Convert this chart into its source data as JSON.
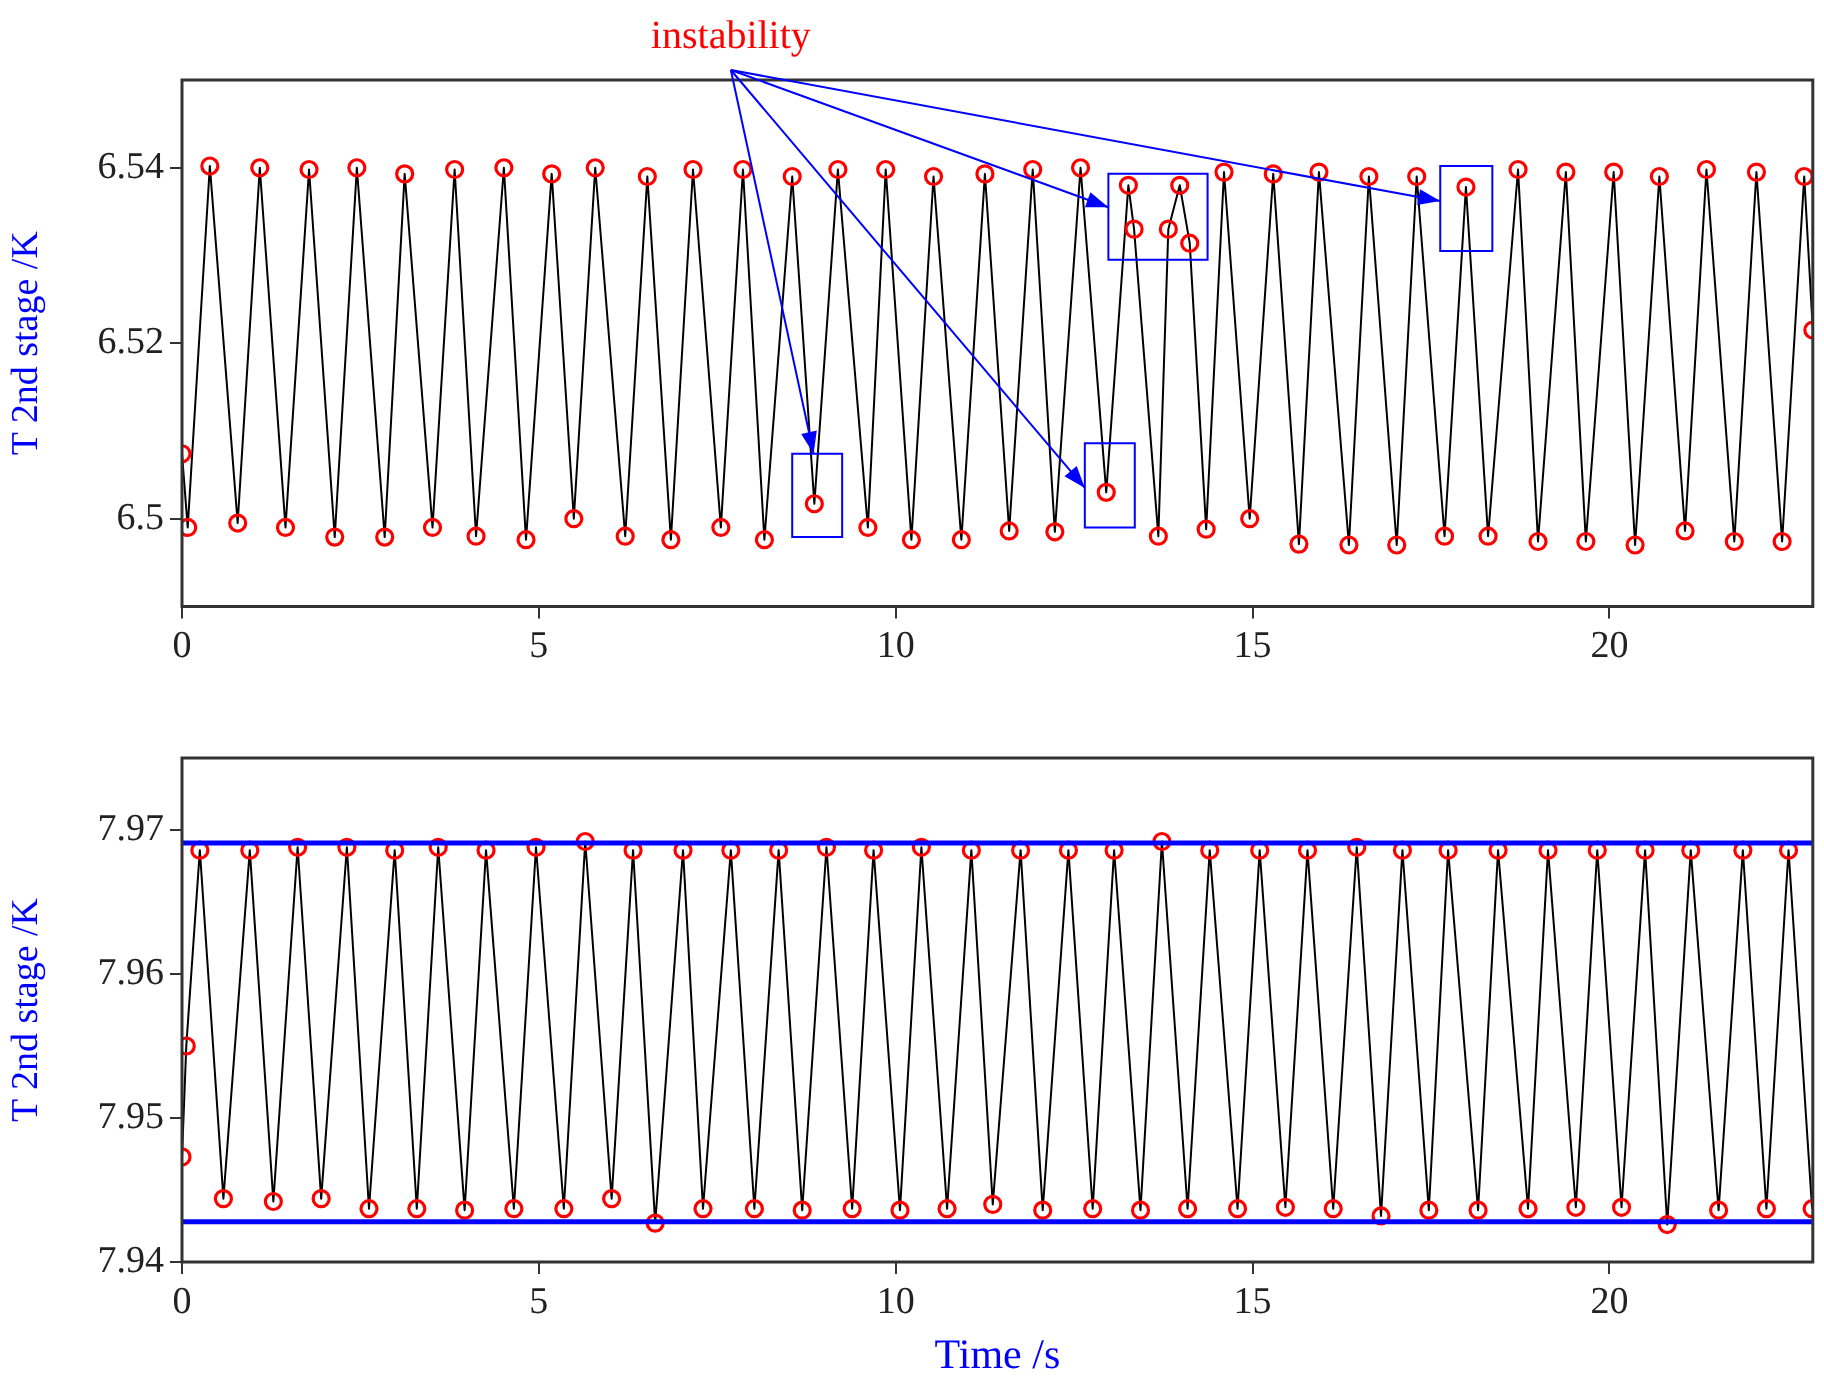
{
  "chart_data": [
    {
      "type": "line",
      "ylabel": "T 2nd stage /K",
      "annotations": [
        {
          "text": "instability",
          "x": 8.85,
          "y": 6.5074
        }
      ],
      "xlim": [
        0,
        22.85
      ],
      "ylim": [
        6.49,
        6.55
      ],
      "xticks": [
        0,
        5,
        10,
        15,
        20
      ],
      "yticks": [
        6.5,
        6.52,
        6.54
      ],
      "grid": false,
      "series": [
        {
          "type": "line",
          "color": "#000000",
          "marker": "none",
          "x": [
            0,
            0.08,
            0.39,
            0.78,
            1.09,
            1.45,
            1.78,
            2.14,
            2.45,
            2.84,
            3.12,
            3.51,
            3.82,
            4.12,
            4.51,
            4.82,
            5.18,
            5.49,
            5.79,
            6.21,
            6.52,
            6.85,
            7.16,
            7.55,
            7.86,
            8.16,
            8.55,
            8.86,
            9.19,
            9.61,
            9.86,
            10.22,
            10.53,
            10.92,
            11.25,
            11.59,
            11.92,
            12.23,
            12.59,
            12.95,
            13.26,
            13.34,
            13.68,
            13.82,
            13.98,
            14.12,
            14.35,
            14.6,
            14.96,
            15.29,
            15.65,
            15.93,
            16.35,
            16.63,
            17.02,
            17.3,
            17.69,
            17.99,
            18.3,
            18.72,
            19.0,
            19.39,
            19.67,
            20.06,
            20.36,
            20.7,
            21.06,
            21.36,
            21.75,
            22.06,
            22.42,
            22.73,
            22.85
          ],
          "values": [
            6.5074,
            6.499,
            6.5402,
            6.4995,
            6.54,
            6.499,
            6.5398,
            6.4979,
            6.54,
            6.4979,
            6.5393,
            6.499,
            6.5398,
            6.498,
            6.54,
            6.4976,
            6.5393,
            6.5,
            6.54,
            6.498,
            6.539,
            6.4976,
            6.5398,
            6.499,
            6.5398,
            6.4976,
            6.539,
            6.5017,
            6.5398,
            6.499,
            6.5398,
            6.4976,
            6.539,
            6.4976,
            6.5393,
            6.4986,
            6.5398,
            6.4985,
            6.54,
            6.503,
            6.538,
            6.533,
            6.498,
            6.533,
            6.538,
            6.5314,
            6.4988,
            6.5395,
            6.5,
            6.5393,
            6.4971,
            6.5395,
            6.497,
            6.539,
            6.497,
            6.539,
            6.498,
            6.5378,
            6.498,
            6.5398,
            6.4974,
            6.5395,
            6.4974,
            6.5395,
            6.497,
            6.539,
            6.4986,
            6.5398,
            6.4974,
            6.5395,
            6.4974,
            6.539,
            6.5215
          ]
        },
        {
          "type": "scatter",
          "color": "#ff0000",
          "marker": "circle",
          "x": [
            0,
            0.08,
            0.39,
            0.78,
            1.09,
            1.45,
            1.78,
            2.14,
            2.45,
            2.84,
            3.12,
            3.51,
            3.82,
            4.12,
            4.51,
            4.82,
            5.18,
            5.49,
            5.79,
            6.21,
            6.52,
            6.85,
            7.16,
            7.55,
            7.86,
            8.16,
            8.55,
            8.86,
            9.19,
            9.61,
            9.86,
            10.22,
            10.53,
            10.92,
            11.25,
            11.59,
            11.92,
            12.23,
            12.59,
            12.95,
            13.26,
            13.34,
            13.68,
            13.82,
            13.98,
            14.12,
            14.35,
            14.6,
            14.96,
            15.29,
            15.65,
            15.93,
            16.35,
            16.63,
            17.02,
            17.3,
            17.69,
            17.99,
            18.3,
            18.72,
            19.0,
            19.39,
            19.67,
            20.06,
            20.36,
            20.7,
            21.06,
            21.36,
            21.75,
            22.06,
            22.42,
            22.73,
            22.85
          ],
          "values": [
            6.5074,
            6.499,
            6.5402,
            6.4995,
            6.54,
            6.499,
            6.5398,
            6.4979,
            6.54,
            6.4979,
            6.5393,
            6.499,
            6.5398,
            6.498,
            6.54,
            6.4976,
            6.5393,
            6.5,
            6.54,
            6.498,
            6.539,
            6.4976,
            6.5398,
            6.499,
            6.5398,
            6.4976,
            6.539,
            6.5017,
            6.5398,
            6.499,
            6.5398,
            6.4976,
            6.539,
            6.4976,
            6.5393,
            6.4986,
            6.5398,
            6.4985,
            6.54,
            6.503,
            6.538,
            6.533,
            6.498,
            6.533,
            6.538,
            6.5314,
            6.4988,
            6.5395,
            6.5,
            6.5393,
            6.4971,
            6.5395,
            6.497,
            6.539,
            6.497,
            6.539,
            6.498,
            6.5378,
            6.498,
            6.5398,
            6.4974,
            6.5395,
            6.4974,
            6.5395,
            6.497,
            6.539,
            6.4986,
            6.5398,
            6.4974,
            6.5395,
            6.4974,
            6.539,
            6.5215
          ]
        }
      ]
    },
    {
      "type": "line",
      "xlabel": "Time /s",
      "ylabel": "T 2nd stage /K",
      "xlim": [
        0,
        22.85
      ],
      "ylim": [
        7.94,
        7.975
      ],
      "xticks": [
        0,
        5,
        10,
        15,
        20
      ],
      "yticks": [
        7.94,
        7.95,
        7.96,
        7.97
      ],
      "grid": false,
      "ref_lines": [
        {
          "axis": "y",
          "value": 7.9691,
          "label": null,
          "color": "#0000ff"
        },
        {
          "axis": "y",
          "value": 7.9428,
          "label": null,
          "color": "#0000ff"
        }
      ],
      "series": [
        {
          "type": "line",
          "color": "#000000",
          "marker": "none",
          "x": [
            0,
            0.06,
            0.25,
            0.58,
            0.95,
            1.28,
            1.62,
            1.95,
            2.31,
            2.62,
            2.98,
            3.29,
            3.59,
            3.96,
            4.26,
            4.65,
            4.96,
            5.35,
            5.65,
            6.02,
            6.32,
            6.63,
            7.02,
            7.3,
            7.69,
            8.02,
            8.36,
            8.69,
            9.03,
            9.39,
            9.69,
            10.06,
            10.36,
            10.72,
            11.06,
            11.36,
            11.75,
            12.06,
            12.42,
            12.76,
            13.06,
            13.43,
            13.73,
            14.09,
            14.4,
            14.79,
            15.1,
            15.46,
            15.77,
            16.13,
            16.46,
            16.8,
            17.1,
            17.47,
            17.74,
            18.16,
            18.44,
            18.86,
            19.14,
            19.53,
            19.83,
            20.17,
            20.5,
            20.81,
            21.14,
            21.53,
            21.87,
            22.2,
            22.51,
            22.84
          ],
          "values": [
            7.9473,
            7.955,
            7.9686,
            7.9444,
            7.9686,
            7.9442,
            7.9688,
            7.9444,
            7.9688,
            7.9437,
            7.9686,
            7.9437,
            7.9688,
            7.9436,
            7.9686,
            7.9437,
            7.9688,
            7.9437,
            7.9692,
            7.9444,
            7.9686,
            7.9427,
            7.9686,
            7.9437,
            7.9686,
            7.9437,
            7.9686,
            7.9436,
            7.9688,
            7.9437,
            7.9686,
            7.9436,
            7.9688,
            7.9437,
            7.9686,
            7.944,
            7.9686,
            7.9436,
            7.9686,
            7.9437,
            7.9686,
            7.9436,
            7.9692,
            7.9437,
            7.9686,
            7.9437,
            7.9686,
            7.9438,
            7.9686,
            7.9437,
            7.9688,
            7.9432,
            7.9686,
            7.9436,
            7.9686,
            7.9436,
            7.9686,
            7.9437,
            7.9686,
            7.9438,
            7.9686,
            7.9438,
            7.9686,
            7.9426,
            7.9686,
            7.9436,
            7.9686,
            7.9437,
            7.9686,
            7.9437
          ]
        },
        {
          "type": "scatter",
          "color": "#ff0000",
          "marker": "circle",
          "x": [
            0,
            0.06,
            0.25,
            0.58,
            0.95,
            1.28,
            1.62,
            1.95,
            2.31,
            2.62,
            2.98,
            3.29,
            3.59,
            3.96,
            4.26,
            4.65,
            4.96,
            5.35,
            5.65,
            6.02,
            6.32,
            6.63,
            7.02,
            7.3,
            7.69,
            8.02,
            8.36,
            8.69,
            9.03,
            9.39,
            9.69,
            10.06,
            10.36,
            10.72,
            11.06,
            11.36,
            11.75,
            12.06,
            12.42,
            12.76,
            13.06,
            13.43,
            13.73,
            14.09,
            14.4,
            14.79,
            15.1,
            15.46,
            15.77,
            16.13,
            16.46,
            16.8,
            17.1,
            17.47,
            17.74,
            18.16,
            18.44,
            18.86,
            19.14,
            19.53,
            19.83,
            20.17,
            20.5,
            20.81,
            21.14,
            21.53,
            21.87,
            22.2,
            22.51,
            22.84
          ],
          "values": [
            7.9473,
            7.955,
            7.9686,
            7.9444,
            7.9686,
            7.9442,
            7.9688,
            7.9444,
            7.9688,
            7.9437,
            7.9686,
            7.9437,
            7.9688,
            7.9436,
            7.9686,
            7.9437,
            7.9688,
            7.9437,
            7.9692,
            7.9444,
            7.9686,
            7.9427,
            7.9686,
            7.9437,
            7.9686,
            7.9437,
            7.9686,
            7.9436,
            7.9688,
            7.9437,
            7.9686,
            7.9436,
            7.9688,
            7.9437,
            7.9686,
            7.944,
            7.9686,
            7.9436,
            7.9686,
            7.9437,
            7.9686,
            7.9436,
            7.9692,
            7.9437,
            7.9686,
            7.9437,
            7.9686,
            7.9438,
            7.9686,
            7.9437,
            7.9688,
            7.9432,
            7.9686,
            7.9436,
            7.9686,
            7.9436,
            7.9686,
            7.9437,
            7.9686,
            7.9438,
            7.9686,
            7.9438,
            7.9686,
            7.9426,
            7.9686,
            7.9436,
            7.9686,
            7.9437,
            7.9686,
            7.9437
          ]
        }
      ]
    }
  ]
}
